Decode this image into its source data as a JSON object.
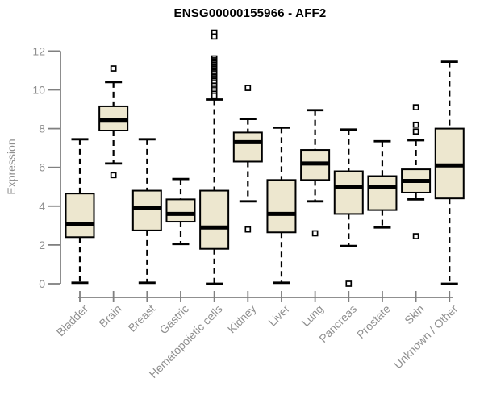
{
  "chart_data": {
    "type": "box",
    "title": "ENSG00000155966 - AFF2",
    "ylabel": "Expression",
    "xlabel": "",
    "ylim": [
      0,
      13
    ],
    "yticks": [
      0,
      2,
      4,
      6,
      8,
      10,
      12
    ],
    "grid": false,
    "legend": "none",
    "categories": [
      "Bladder",
      "Brain",
      "Breast",
      "Gastric",
      "Hematopoietic cells",
      "Kidney",
      "Liver",
      "Lung",
      "Pancreas",
      "Prostate",
      "Skin",
      "Unknown / Other"
    ],
    "boxes": [
      {
        "label": "Bladder",
        "whisker_low": 0.05,
        "q1": 2.4,
        "median": 3.1,
        "q3": 4.65,
        "whisker_high": 7.45,
        "outliers": []
      },
      {
        "label": "Brain",
        "whisker_low": 6.2,
        "q1": 7.9,
        "median": 8.45,
        "q3": 9.15,
        "whisker_high": 10.4,
        "outliers": [
          11.1,
          5.6
        ]
      },
      {
        "label": "Breast",
        "whisker_low": 0.05,
        "q1": 2.75,
        "median": 3.9,
        "q3": 4.8,
        "whisker_high": 7.45,
        "outliers": []
      },
      {
        "label": "Gastric",
        "whisker_low": 2.05,
        "q1": 3.2,
        "median": 3.6,
        "q3": 4.35,
        "whisker_high": 5.4,
        "outliers": []
      },
      {
        "label": "Hematopoietic cells",
        "whisker_low": 0.0,
        "q1": 1.8,
        "median": 2.9,
        "q3": 4.8,
        "whisker_high": 9.5,
        "outliers": [
          12.95,
          12.75,
          11.62,
          11.52,
          11.45,
          11.38,
          11.3,
          11.22,
          11.15,
          11.08,
          11.0,
          10.92,
          10.85,
          10.75,
          10.68,
          10.6,
          10.52,
          10.45,
          10.35,
          10.22,
          10.12,
          10.02,
          9.92,
          9.8,
          9.7
        ]
      },
      {
        "label": "Kidney",
        "whisker_low": 4.25,
        "q1": 6.3,
        "median": 7.3,
        "q3": 7.8,
        "whisker_high": 8.5,
        "outliers": [
          10.1,
          2.8
        ]
      },
      {
        "label": "Liver",
        "whisker_low": 0.05,
        "q1": 2.65,
        "median": 3.6,
        "q3": 5.35,
        "whisker_high": 8.05,
        "outliers": []
      },
      {
        "label": "Lung",
        "whisker_low": 4.25,
        "q1": 5.35,
        "median": 6.2,
        "q3": 6.9,
        "whisker_high": 8.95,
        "outliers": [
          2.6
        ]
      },
      {
        "label": "Pancreas",
        "whisker_low": 1.95,
        "q1": 3.6,
        "median": 5.0,
        "q3": 5.8,
        "whisker_high": 7.95,
        "outliers": [
          0.0
        ]
      },
      {
        "label": "Prostate",
        "whisker_low": 2.9,
        "q1": 3.8,
        "median": 5.0,
        "q3": 5.55,
        "whisker_high": 7.35,
        "outliers": []
      },
      {
        "label": "Skin",
        "whisker_low": 4.35,
        "q1": 4.7,
        "median": 5.3,
        "q3": 5.9,
        "whisker_high": 7.4,
        "outliers": [
          9.1,
          8.2,
          7.85,
          2.45
        ]
      },
      {
        "label": "Unknown / Other",
        "whisker_low": 0.0,
        "q1": 4.4,
        "median": 6.1,
        "q3": 8.0,
        "whisker_high": 11.45,
        "outliers": []
      }
    ]
  },
  "colors": {
    "box_fill": "#ede7cf",
    "box_border": "#000000",
    "median": "#000000",
    "whisker": "#000000",
    "axis_line": "#808080",
    "axis_text": "#8f8f8f",
    "title_text": "#000000",
    "background": "#ffffff"
  }
}
